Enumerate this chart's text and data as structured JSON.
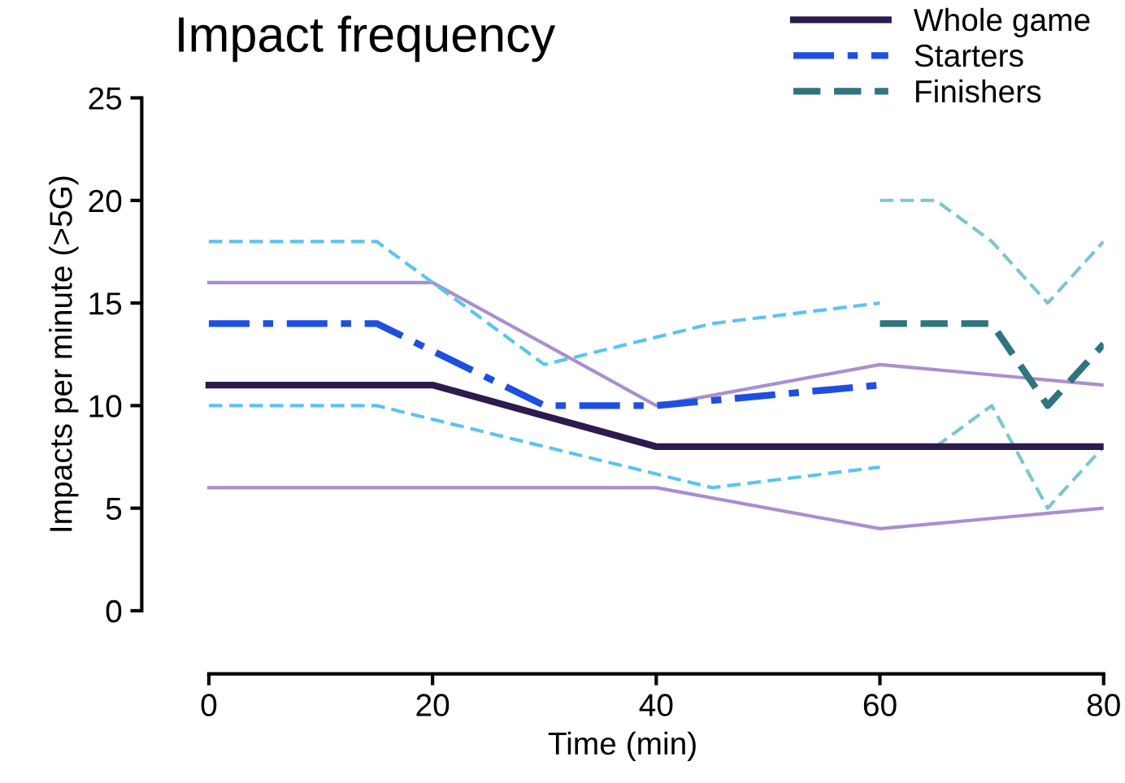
{
  "chart_data": {
    "type": "line",
    "title": "Impact frequency",
    "xlabel": "Time (min)",
    "ylabel": "Impacts per minute (>5G)",
    "xlim": [
      -6,
      80
    ],
    "xticks": [
      0,
      20,
      40,
      60,
      80
    ],
    "ylim": [
      0,
      25
    ],
    "yticks": [
      0,
      5,
      10,
      15,
      20,
      25
    ],
    "grid": false,
    "legend": "top right",
    "series": [
      {
        "color": "#a98fd0",
        "line_style": "solid",
        "x": [
          0,
          20,
          40,
          60,
          80
        ],
        "values": [
          16,
          16,
          10,
          12,
          11
        ]
      },
      {
        "color": "#a98fd0",
        "line_style": "solid",
        "x": [
          0,
          40,
          60,
          80
        ],
        "values": [
          6,
          6,
          4,
          5
        ]
      },
      {
        "color": "#5bc4f0",
        "line_style": "dashed",
        "x": [
          0,
          15,
          30,
          45,
          60
        ],
        "values": [
          18,
          18,
          12,
          14,
          15
        ]
      },
      {
        "color": "#5bc4f0",
        "line_style": "dashed",
        "x": [
          0,
          15,
          45,
          60
        ],
        "values": [
          10,
          10,
          6,
          7
        ]
      },
      {
        "color": "#7cc6cc",
        "line_style": "dashed",
        "x": [
          60,
          65,
          70,
          75,
          80
        ],
        "values": [
          20,
          20,
          18,
          15,
          18
        ]
      },
      {
        "color": "#7cc6cc",
        "line_style": "dashed",
        "x": [
          65,
          70,
          75,
          80
        ],
        "values": [
          8,
          10,
          5,
          8
        ]
      },
      {
        "name": "Whole game",
        "color": "#2d1a4f",
        "line_style": "solid",
        "x": [
          0,
          20,
          40,
          80
        ],
        "values": [
          11,
          11,
          8,
          8
        ]
      },
      {
        "name": "Starters",
        "color": "#1f4fe0",
        "line_style": "dashdot",
        "x": [
          0,
          15,
          30,
          40,
          60
        ],
        "values": [
          14,
          14,
          10,
          10,
          11
        ]
      },
      {
        "name": "Finishers",
        "color": "#2f7480",
        "line_style": "dashed",
        "x": [
          60,
          70,
          75,
          80
        ],
        "values": [
          14,
          14,
          10,
          13
        ]
      }
    ]
  }
}
